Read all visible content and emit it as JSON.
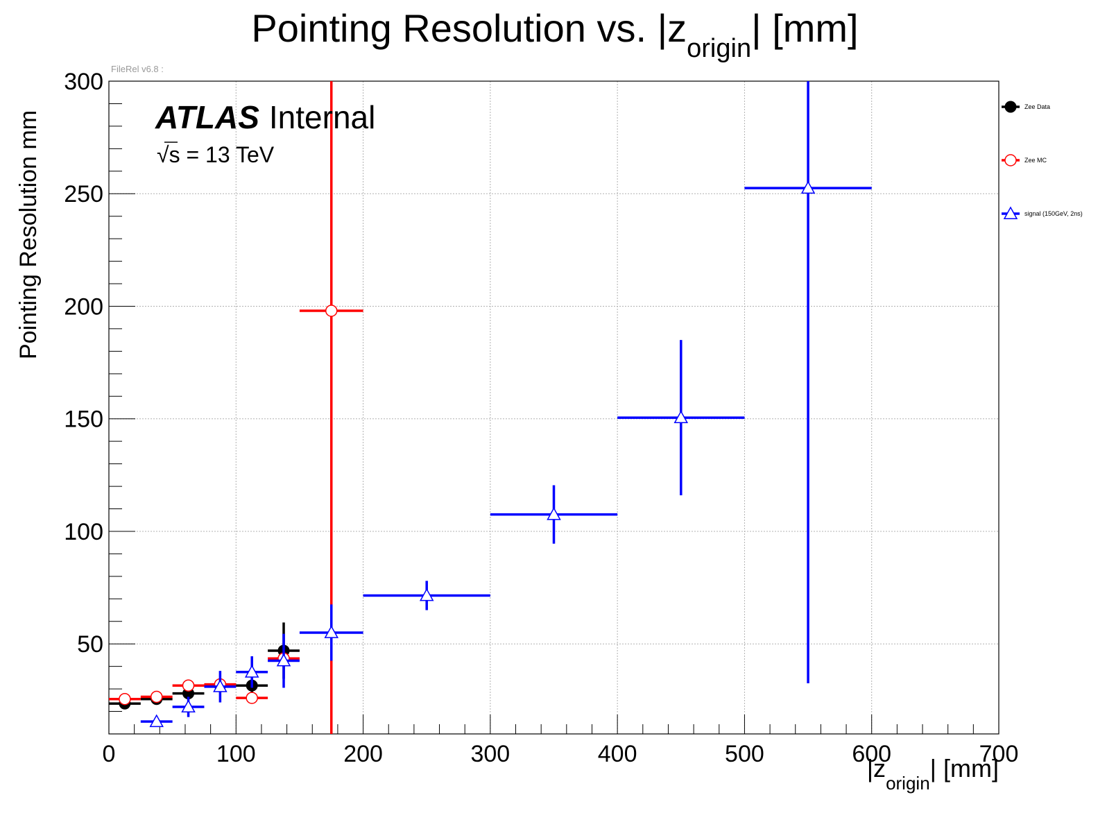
{
  "chart_data": {
    "type": "scatter",
    "title_main": "Pointing Resolution vs. |z",
    "title_sub": "origin",
    "title_end": "| [mm]",
    "version_text": "FileRel v6.8 :",
    "atlas_label": "ATLAS",
    "atlas_status": "Internal",
    "energy_sqrt": "√",
    "energy_s": "s",
    "energy_rest": " = 13 TeV",
    "ylabel": "Pointing Resolution mm",
    "xlabel_main": "|z",
    "xlabel_sub": "origin",
    "xlabel_end": "| [mm]",
    "xlim": [
      0,
      700
    ],
    "ylim": [
      10,
      300
    ],
    "xticks": [
      0,
      100,
      200,
      300,
      400,
      500,
      600,
      700
    ],
    "yticks": [
      50,
      100,
      150,
      200,
      250,
      300
    ],
    "x_minor_step": 20,
    "y_minor_step": 10,
    "grid": true,
    "legend_position": "right",
    "series": [
      {
        "name": "Zee Data",
        "color": "#000000",
        "marker": "filled-circle",
        "points": [
          {
            "x": 12.5,
            "xerr": 12.5,
            "y": 23.5,
            "yerr": 2
          },
          {
            "x": 37.5,
            "xerr": 12.5,
            "y": 25.5,
            "yerr": 2
          },
          {
            "x": 62.5,
            "xerr": 12.5,
            "y": 28,
            "yerr": 2
          },
          {
            "x": 87.5,
            "xerr": 12.5,
            "y": 31.5,
            "yerr": 3
          },
          {
            "x": 112.5,
            "xerr": 12.5,
            "y": 31.5,
            "yerr": 3
          },
          {
            "x": 137.5,
            "xerr": 12.5,
            "y": 47,
            "yerr": 12.5
          }
        ]
      },
      {
        "name": "Zee MC",
        "color": "#ff0000",
        "marker": "open-circle",
        "points": [
          {
            "x": 12.5,
            "xerr": 12.5,
            "y": 25.5,
            "yerr": 1
          },
          {
            "x": 37.5,
            "xerr": 12.5,
            "y": 26.5,
            "yerr": 1
          },
          {
            "x": 62.5,
            "xerr": 12.5,
            "y": 31.5,
            "yerr": 1
          },
          {
            "x": 87.5,
            "xerr": 12.5,
            "y": 32,
            "yerr": 1
          },
          {
            "x": 112.5,
            "xerr": 12.5,
            "y": 26,
            "yerr": 1
          },
          {
            "x": 137.5,
            "xerr": 12.5,
            "y": 43.5,
            "yerr": 1
          },
          {
            "x": 175,
            "xerr": 25,
            "y": 198,
            "yerr": 200
          }
        ]
      },
      {
        "name": "signal (150GeV, 2ns)",
        "color": "#0000ff",
        "marker": "open-triangle",
        "points": [
          {
            "x": 37.5,
            "xerr": 12.5,
            "y": 15.5,
            "yerr": 1.5
          },
          {
            "x": 62.5,
            "xerr": 12.5,
            "y": 22,
            "yerr": 4.5
          },
          {
            "x": 87.5,
            "xerr": 12.5,
            "y": 31,
            "yerr": 7
          },
          {
            "x": 112.5,
            "xerr": 12.5,
            "y": 37.5,
            "yerr": 7
          },
          {
            "x": 137.5,
            "xerr": 12.5,
            "y": 42.5,
            "yerr": 12
          },
          {
            "x": 175,
            "xerr": 25,
            "y": 55,
            "yerr": 12.5
          },
          {
            "x": 250,
            "xerr": 50,
            "y": 71.5,
            "yerr": 6.5
          },
          {
            "x": 350,
            "xerr": 50,
            "y": 107.5,
            "yerr": 13
          },
          {
            "x": 450,
            "xerr": 50,
            "y": 150.5,
            "yerr": 34.5
          },
          {
            "x": 550,
            "xerr": 50,
            "y": 252.5,
            "yerr": 220
          }
        ]
      }
    ]
  }
}
